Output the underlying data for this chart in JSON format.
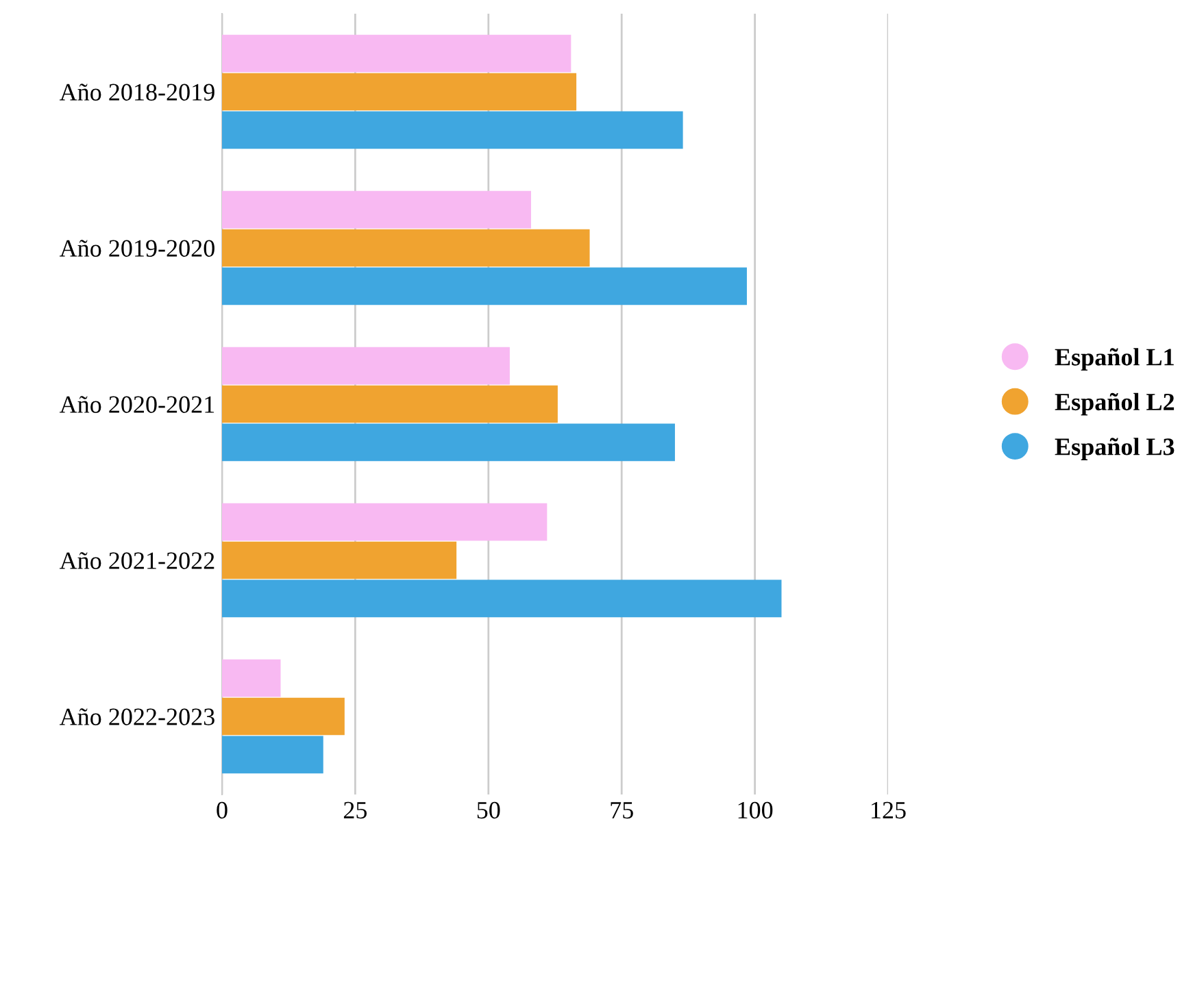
{
  "chart_data": {
    "type": "bar",
    "orientation": "horizontal",
    "categories": [
      "Año 2018-2019",
      "Año 2019-2020",
      "Año 2020-2021",
      "Año 2021-2022",
      "Año 2022-2023"
    ],
    "series": [
      {
        "name": "Español L1",
        "color": "#f8b9f2",
        "values": [
          65.5,
          58,
          54,
          61,
          11
        ]
      },
      {
        "name": "Español L2",
        "color": "#f0a330",
        "values": [
          66.5,
          69,
          63,
          44,
          23
        ]
      },
      {
        "name": "Español L3",
        "color": "#3fa7e0",
        "values": [
          86.5,
          98.5,
          85,
          105,
          19
        ]
      }
    ],
    "xlim": [
      0,
      125
    ],
    "xticks": [
      0,
      25,
      50,
      75,
      100,
      125
    ],
    "grid": "x",
    "legend": "right"
  }
}
